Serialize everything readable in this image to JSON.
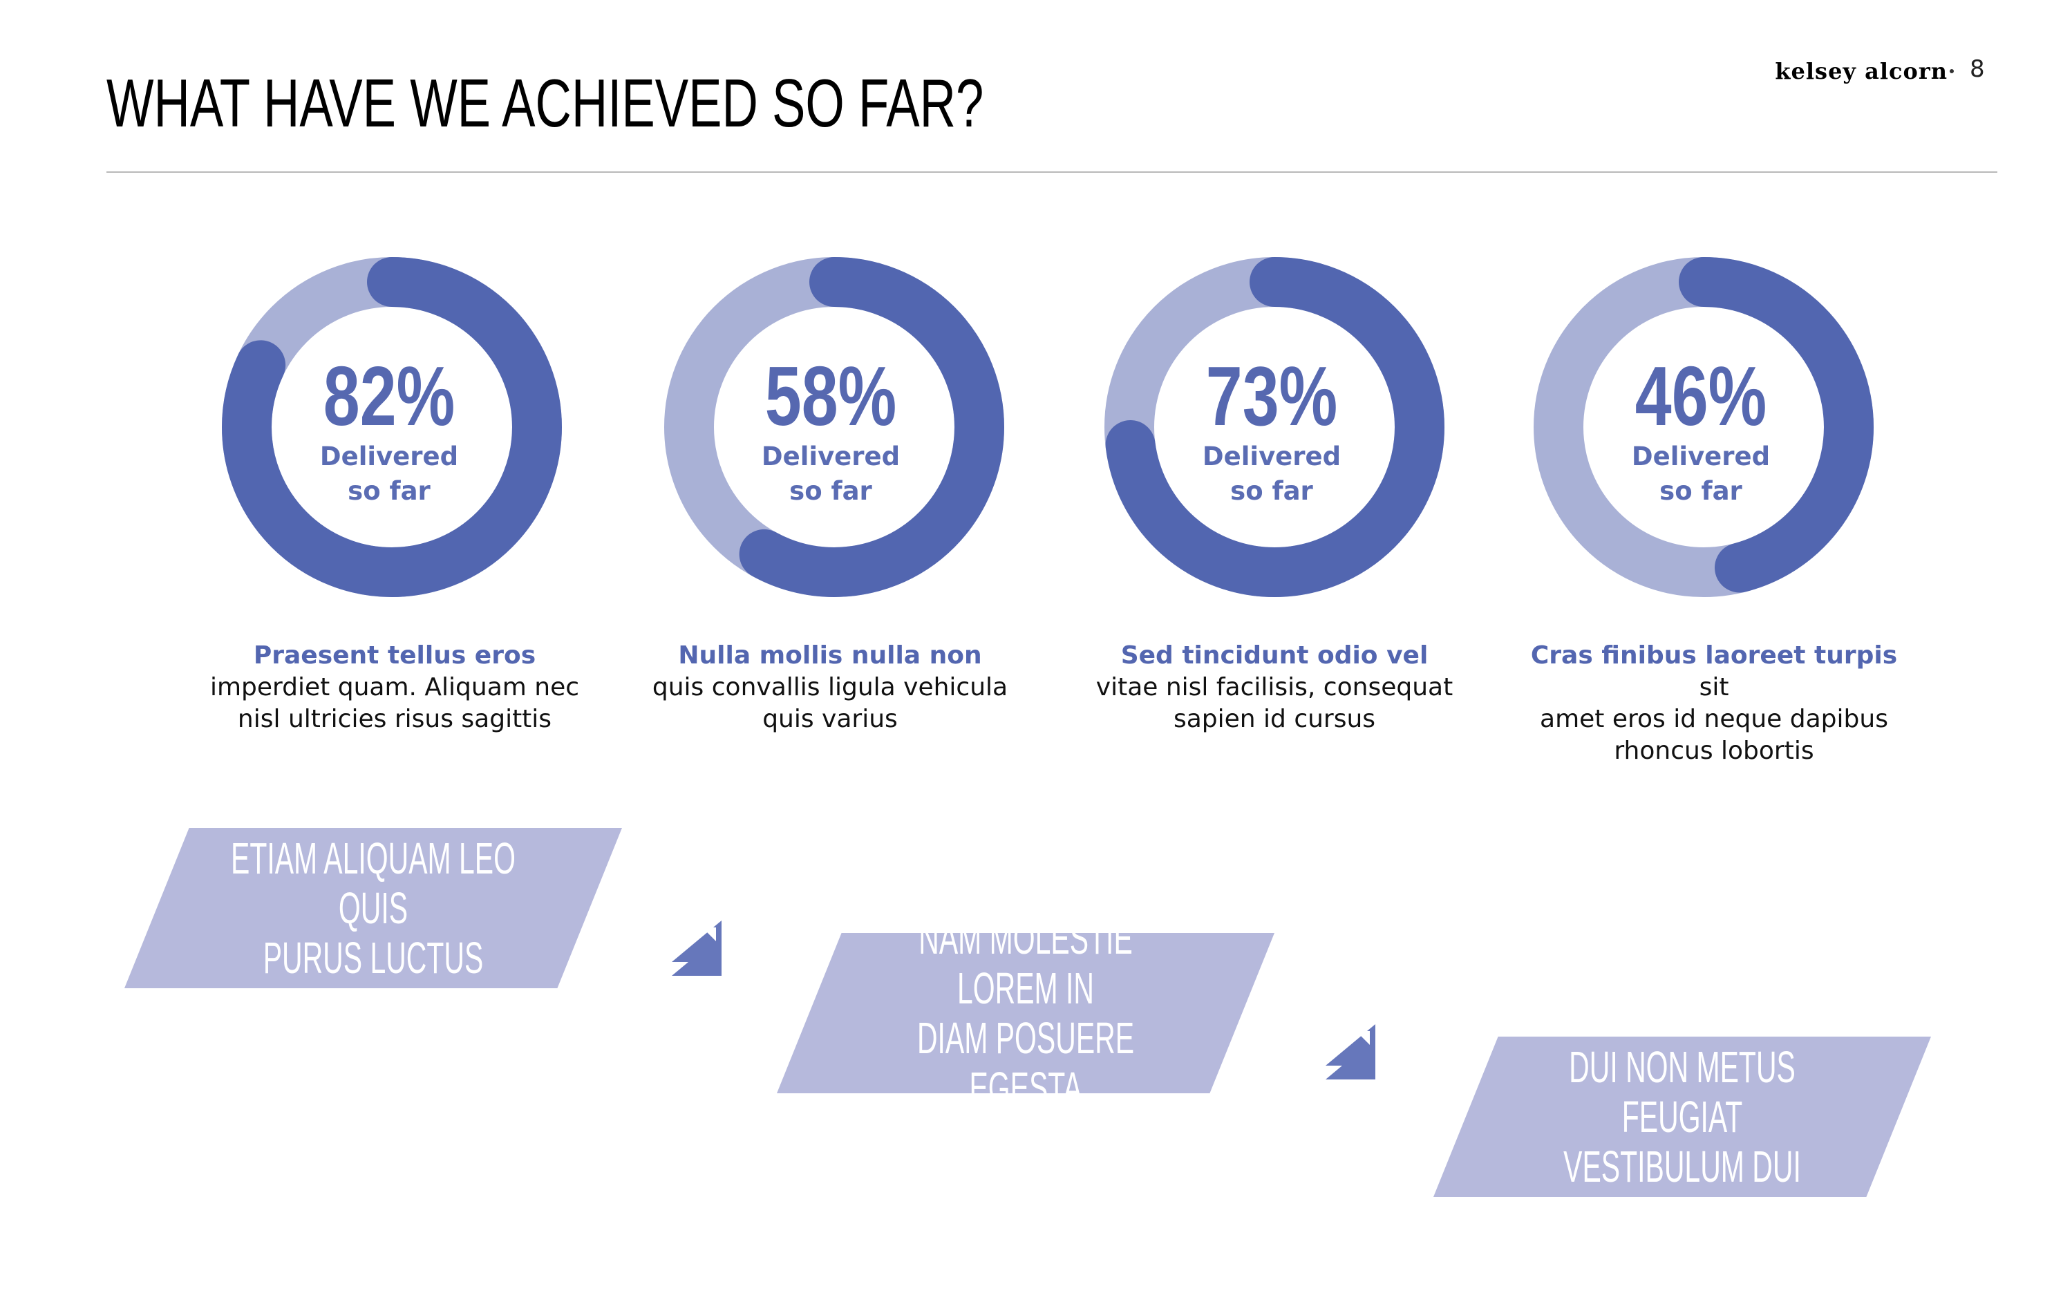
{
  "header": {
    "title": "WHAT HAVE WE ACHIEVED SO FAR?",
    "brand": "kelsey alcorn",
    "page_number": "8"
  },
  "colors": {
    "filled": "#5266b0",
    "remaining": "#a9b1d6",
    "banner": "#b6b9dc",
    "arrow": "#6677bb"
  },
  "chart_data": [
    {
      "type": "pie",
      "values": [
        82,
        18
      ],
      "label": "82%",
      "caption_line1": "Delivered",
      "caption_line2": "so far"
    },
    {
      "type": "pie",
      "values": [
        58,
        42
      ],
      "label": "58%",
      "caption_line1": "Delivered",
      "caption_line2": "so far"
    },
    {
      "type": "pie",
      "values": [
        73,
        27
      ],
      "label": "73%",
      "caption_line1": "Delivered",
      "caption_line2": "so far"
    },
    {
      "type": "pie",
      "values": [
        46,
        54
      ],
      "label": "46%",
      "caption_line1": "Delivered",
      "caption_line2": "so far"
    }
  ],
  "descriptions": [
    {
      "lead": "Praesent tellus eros",
      "line2": "imperdiet quam. Aliquam nec",
      "line3": "nisl ultricies risus sagittis"
    },
    {
      "lead": "Nulla mollis nulla non",
      "line2": "quis convallis ligula vehicula",
      "line3": "quis varius"
    },
    {
      "lead": "Sed tincidunt odio vel",
      "line2": "vitae nisl facilisis, consequat",
      "line3": "sapien id cursus"
    },
    {
      "lead": "Cras finibus laoreet turpis",
      "lead_tail": " sit",
      "line2": "amet eros id neque dapibus",
      "line3": "rhoncus lobortis"
    }
  ],
  "steps": [
    {
      "line1": "ETIAM ALIQUAM LEO QUIS",
      "line2": "PURUS LUCTUS"
    },
    {
      "line1": "NAM MOLESTIE LOREM IN",
      "line2": "DIAM POSUERE EGESTA"
    },
    {
      "line1": "DUI NON METUS FEUGIAT",
      "line2": "VESTIBULUM DUI"
    }
  ],
  "connector_icons": [
    "arrow-up-left-icon",
    "arrow-up-left-icon"
  ]
}
